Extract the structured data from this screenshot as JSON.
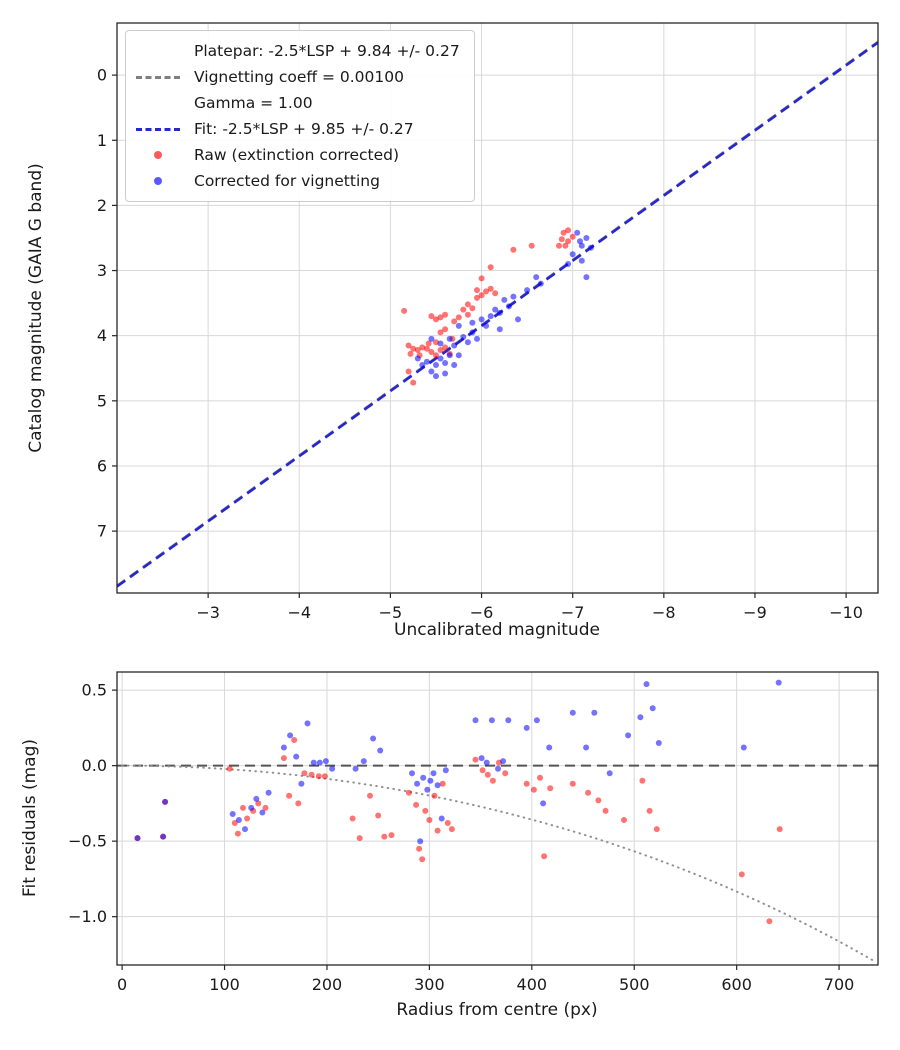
{
  "figure": {
    "background": "#ffffff",
    "grid_color": "#d8d8d8",
    "spine_color": "#262626"
  },
  "legend": {
    "platepar_label_lines": [
      "Platepar: -2.5*LSP + 9.84 +/- 0.27",
      "Vignetting coeff = 0.00100",
      "Gamma = 1.00"
    ],
    "fit_label": "Fit: -2.5*LSP + 9.85 +/- 0.27",
    "raw_label": "Raw (extinction corrected)",
    "corrected_label": "Corrected for vignetting",
    "platepar_color": "#7f7f7f",
    "fit_color": "#2727cf",
    "raw_color": "#ff0000",
    "corrected_color": "#0000ff"
  },
  "chart_data": [
    {
      "type": "scatter",
      "xlabel": "Uncalibrated magnitude",
      "ylabel": "Catalog magnitude (GAIA G band)",
      "xlim": [
        -2.0,
        -10.35
      ],
      "ylim": [
        7.95,
        -0.8
      ],
      "xticks": [
        -3,
        -4,
        -5,
        -6,
        -7,
        -8,
        -9,
        -10
      ],
      "yticks": [
        0,
        1,
        2,
        3,
        4,
        5,
        6,
        7
      ],
      "xtick_decimals": 0,
      "ytick_decimals": 0,
      "grid": true,
      "legend_position": "upper left",
      "lines": [
        {
          "name": "platepar",
          "label": "Platepar: -2.5*LSP + 9.84 +/- 0.27",
          "slope": 1,
          "intercept": 9.84,
          "color": "#7f7f7f",
          "style": "dashed"
        },
        {
          "name": "fit",
          "label": "Fit: -2.5*LSP + 9.85 +/- 0.27",
          "slope": 1,
          "intercept": 9.85,
          "color": "#2727cf",
          "style": "dashed"
        }
      ],
      "series": [
        {
          "name": "Raw (extinction corrected)",
          "color": "#ff0000",
          "opacity": 0.55,
          "marker_size": 3,
          "points": [
            [
              -5.15,
              3.62
            ],
            [
              -5.2,
              4.15
            ],
            [
              -5.22,
              4.28
            ],
            [
              -5.25,
              4.2
            ],
            [
              -5.3,
              4.22
            ],
            [
              -5.32,
              4.3
            ],
            [
              -5.35,
              4.18
            ],
            [
              -5.2,
              4.55
            ],
            [
              -5.25,
              4.72
            ],
            [
              -5.4,
              4.2
            ],
            [
              -5.42,
              4.12
            ],
            [
              -5.45,
              4.25
            ],
            [
              -5.5,
              4.3
            ],
            [
              -5.5,
              4.1
            ],
            [
              -5.55,
              4.22
            ],
            [
              -5.55,
              3.95
            ],
            [
              -5.6,
              4.18
            ],
            [
              -5.6,
              3.9
            ],
            [
              -5.65,
              4.28
            ],
            [
              -5.68,
              4.05
            ],
            [
              -5.45,
              3.7
            ],
            [
              -5.5,
              3.75
            ],
            [
              -5.55,
              3.72
            ],
            [
              -5.6,
              3.68
            ],
            [
              -5.7,
              3.78
            ],
            [
              -5.75,
              3.72
            ],
            [
              -5.8,
              3.6
            ],
            [
              -5.85,
              3.68
            ],
            [
              -5.85,
              3.52
            ],
            [
              -5.9,
              3.58
            ],
            [
              -5.95,
              3.42
            ],
            [
              -5.95,
              3.3
            ],
            [
              -6.0,
              3.38
            ],
            [
              -6.05,
              3.32
            ],
            [
              -6.1,
              3.28
            ],
            [
              -6.15,
              3.35
            ],
            [
              -6.0,
              3.12
            ],
            [
              -6.1,
              2.95
            ],
            [
              -6.35,
              2.68
            ],
            [
              -6.55,
              2.62
            ],
            [
              -6.85,
              2.62
            ],
            [
              -6.88,
              2.52
            ],
            [
              -6.9,
              2.42
            ],
            [
              -6.92,
              2.62
            ],
            [
              -6.95,
              2.38
            ],
            [
              -6.95,
              2.55
            ],
            [
              -7.0,
              2.48
            ]
          ]
        },
        {
          "name": "Corrected for vignetting",
          "color": "#0000ff",
          "opacity": 0.55,
          "marker_size": 3,
          "points": [
            [
              -5.3,
              4.35
            ],
            [
              -5.35,
              4.45
            ],
            [
              -5.4,
              4.4
            ],
            [
              -5.45,
              4.55
            ],
            [
              -5.5,
              4.45
            ],
            [
              -5.55,
              4.35
            ],
            [
              -5.6,
              4.42
            ],
            [
              -5.65,
              4.3
            ],
            [
              -5.5,
              4.62
            ],
            [
              -5.6,
              4.58
            ],
            [
              -5.7,
              4.45
            ],
            [
              -5.75,
              4.3
            ],
            [
              -5.45,
              4.05
            ],
            [
              -5.55,
              4.12
            ],
            [
              -5.65,
              4.05
            ],
            [
              -5.7,
              4.15
            ],
            [
              -5.8,
              4.02
            ],
            [
              -5.85,
              4.1
            ],
            [
              -5.9,
              3.95
            ],
            [
              -5.95,
              4.05
            ],
            [
              -5.75,
              3.85
            ],
            [
              -5.9,
              3.8
            ],
            [
              -6.0,
              3.75
            ],
            [
              -6.05,
              3.85
            ],
            [
              -6.1,
              3.7
            ],
            [
              -6.15,
              3.6
            ],
            [
              -6.2,
              3.65
            ],
            [
              -6.25,
              3.45
            ],
            [
              -6.3,
              3.55
            ],
            [
              -6.35,
              3.4
            ],
            [
              -6.2,
              3.9
            ],
            [
              -6.4,
              3.75
            ],
            [
              -6.5,
              3.3
            ],
            [
              -6.6,
              3.1
            ],
            [
              -6.65,
              3.2
            ],
            [
              -6.95,
              2.9
            ],
            [
              -7.0,
              2.75
            ],
            [
              -7.05,
              2.42
            ],
            [
              -7.08,
              2.55
            ],
            [
              -7.1,
              2.62
            ],
            [
              -7.1,
              2.85
            ],
            [
              -7.15,
              2.5
            ],
            [
              -7.15,
              3.1
            ],
            [
              -7.2,
              2.65
            ]
          ]
        }
      ]
    },
    {
      "type": "scatter",
      "xlabel": "Radius from centre (px)",
      "ylabel": "Fit residuals (mag)",
      "xlim": [
        -5,
        738
      ],
      "ylim": [
        -1.32,
        0.62
      ],
      "xticks": [
        0,
        100,
        200,
        300,
        400,
        500,
        600,
        700
      ],
      "yticks": [
        0.5,
        0.0,
        -0.5,
        -1.0
      ],
      "xtick_decimals": 0,
      "ytick_decimals": 1,
      "grid": true,
      "zero_line": {
        "y": 0,
        "color": "#555555",
        "style": "dashed"
      },
      "vignetting_curve": {
        "color": "#909090",
        "style": "dotted",
        "coefficient": 0.001,
        "formula": "residual = 10*log10(cos(coefficient*radius))"
      },
      "series": [
        {
          "name": "Raw (extinction corrected)",
          "color": "#ff0000",
          "opacity": 0.55,
          "marker_size": 3,
          "points": [
            [
              15,
              -0.48
            ],
            [
              40,
              -0.47
            ],
            [
              42,
              -0.24
            ],
            [
              105,
              -0.02
            ],
            [
              110,
              -0.38
            ],
            [
              113,
              -0.45
            ],
            [
              118,
              -0.28
            ],
            [
              122,
              -0.35
            ],
            [
              128,
              -0.3
            ],
            [
              133,
              -0.25
            ],
            [
              140,
              -0.28
            ],
            [
              158,
              0.05
            ],
            [
              163,
              -0.2
            ],
            [
              168,
              0.17
            ],
            [
              172,
              -0.25
            ],
            [
              178,
              -0.05
            ],
            [
              185,
              -0.06
            ],
            [
              192,
              -0.07
            ],
            [
              198,
              -0.07
            ],
            [
              225,
              -0.35
            ],
            [
              232,
              -0.48
            ],
            [
              242,
              -0.2
            ],
            [
              250,
              -0.33
            ],
            [
              256,
              -0.47
            ],
            [
              263,
              -0.46
            ],
            [
              280,
              -0.18
            ],
            [
              287,
              -0.26
            ],
            [
              290,
              -0.55
            ],
            [
              293,
              -0.62
            ],
            [
              296,
              -0.3
            ],
            [
              300,
              -0.36
            ],
            [
              305,
              -0.2
            ],
            [
              308,
              -0.43
            ],
            [
              313,
              -0.12
            ],
            [
              318,
              -0.38
            ],
            [
              322,
              -0.42
            ],
            [
              345,
              0.04
            ],
            [
              352,
              -0.03
            ],
            [
              357,
              -0.06
            ],
            [
              362,
              -0.1
            ],
            [
              368,
              0.02
            ],
            [
              374,
              -0.05
            ],
            [
              395,
              -0.12
            ],
            [
              402,
              -0.16
            ],
            [
              408,
              -0.08
            ],
            [
              412,
              -0.6
            ],
            [
              418,
              -0.15
            ],
            [
              440,
              -0.12
            ],
            [
              455,
              -0.18
            ],
            [
              465,
              -0.23
            ],
            [
              472,
              -0.3
            ],
            [
              490,
              -0.36
            ],
            [
              508,
              -0.1
            ],
            [
              515,
              -0.3
            ],
            [
              522,
              -0.42
            ],
            [
              605,
              -0.72
            ],
            [
              632,
              -1.03
            ],
            [
              642,
              -0.42
            ]
          ]
        },
        {
          "name": "Corrected for vignetting",
          "color": "#0000ff",
          "opacity": 0.55,
          "marker_size": 3,
          "points": [
            [
              15,
              -0.48
            ],
            [
              40,
              -0.47
            ],
            [
              42,
              -0.24
            ],
            [
              108,
              -0.32
            ],
            [
              114,
              -0.36
            ],
            [
              120,
              -0.42
            ],
            [
              126,
              -0.28
            ],
            [
              131,
              -0.22
            ],
            [
              137,
              -0.31
            ],
            [
              143,
              -0.18
            ],
            [
              158,
              0.12
            ],
            [
              164,
              0.2
            ],
            [
              170,
              0.06
            ],
            [
              175,
              -0.12
            ],
            [
              181,
              0.28
            ],
            [
              187,
              0.02
            ],
            [
              193,
              0.02
            ],
            [
              199,
              0.03
            ],
            [
              205,
              -0.02
            ],
            [
              228,
              -0.02
            ],
            [
              236,
              0.03
            ],
            [
              245,
              0.18
            ],
            [
              252,
              0.1
            ],
            [
              283,
              -0.05
            ],
            [
              288,
              -0.12
            ],
            [
              291,
              -0.5
            ],
            [
              294,
              -0.08
            ],
            [
              298,
              -0.16
            ],
            [
              301,
              -0.1
            ],
            [
              304,
              -0.05
            ],
            [
              308,
              -0.13
            ],
            [
              312,
              -0.35
            ],
            [
              316,
              -0.03
            ],
            [
              345,
              0.3
            ],
            [
              351,
              0.05
            ],
            [
              356,
              0.02
            ],
            [
              361,
              0.3
            ],
            [
              367,
              -0.02
            ],
            [
              372,
              0.03
            ],
            [
              377,
              0.3
            ],
            [
              395,
              0.25
            ],
            [
              405,
              0.3
            ],
            [
              411,
              -0.25
            ],
            [
              417,
              0.12
            ],
            [
              440,
              0.35
            ],
            [
              453,
              0.12
            ],
            [
              461,
              0.35
            ],
            [
              476,
              -0.05
            ],
            [
              494,
              0.2
            ],
            [
              506,
              0.32
            ],
            [
              512,
              0.54
            ],
            [
              518,
              0.38
            ],
            [
              524,
              0.15
            ],
            [
              607,
              0.12
            ],
            [
              641,
              0.55
            ]
          ]
        }
      ]
    }
  ]
}
